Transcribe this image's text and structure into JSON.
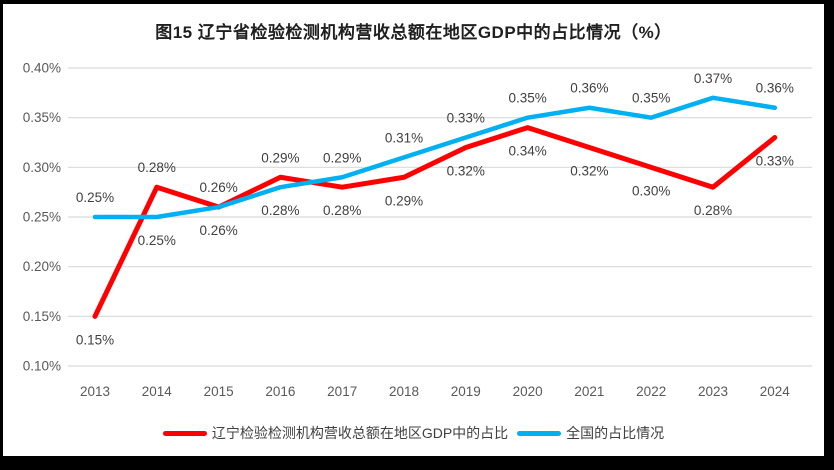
{
  "window": {
    "background": "#000000",
    "canvas_background": "#FFFFFF"
  },
  "chart_data": {
    "type": "line",
    "title": "图15 辽宁省检验检测机构营收总额在地区GDP中的占比情况（%）",
    "categories": [
      "2013",
      "2014",
      "2015",
      "2016",
      "2017",
      "2018",
      "2019",
      "2020",
      "2021",
      "2022",
      "2023",
      "2024"
    ],
    "series": [
      {
        "name": "辽宁检验检测机构营收总额在地区GDP中的占比",
        "color": "#FF0000",
        "values": [
          0.15,
          0.28,
          0.26,
          0.29,
          0.28,
          0.29,
          0.32,
          0.34,
          0.32,
          0.3,
          0.28,
          0.33
        ],
        "data_labels": [
          "0.15%",
          "0.28%",
          "0.26%",
          "0.29%",
          "0.28%",
          "0.29%",
          "0.32%",
          "0.34%",
          "0.32%",
          "0.30%",
          "0.28%",
          "0.33%"
        ],
        "label_positions": [
          "below",
          "above",
          "above",
          "above",
          "below",
          "below",
          "below",
          "below",
          "below",
          "below",
          "below",
          "below"
        ]
      },
      {
        "name": "全国的占比情况",
        "color": "#00B0F0",
        "values": [
          0.25,
          0.25,
          0.26,
          0.28,
          0.29,
          0.31,
          0.33,
          0.35,
          0.36,
          0.35,
          0.37,
          0.36
        ],
        "data_labels": [
          "0.25%",
          "0.25%",
          "0.26%",
          "0.28%",
          "0.29%",
          "0.31%",
          "0.33%",
          "0.35%",
          "0.36%",
          "0.35%",
          "0.37%",
          "0.36%"
        ],
        "label_positions": [
          "above",
          "below",
          "below",
          "below",
          "above",
          "above",
          "above",
          "above",
          "above",
          "above",
          "above",
          "above"
        ]
      }
    ],
    "y_axis": {
      "ticks": [
        "0.40%",
        "0.35%",
        "0.30%",
        "0.25%",
        "0.20%",
        "0.15%",
        "0.10%"
      ],
      "max": 0.4,
      "min": 0.1,
      "tick_step": 0.05
    },
    "x_axis": {
      "label": ""
    },
    "grid": true,
    "legend_position": "bottom",
    "styles": {
      "gridline_color": "#D9D9D9",
      "tick_color": "#595959",
      "data_label_color": "#404040",
      "title_color": "#1F1F1F"
    }
  }
}
